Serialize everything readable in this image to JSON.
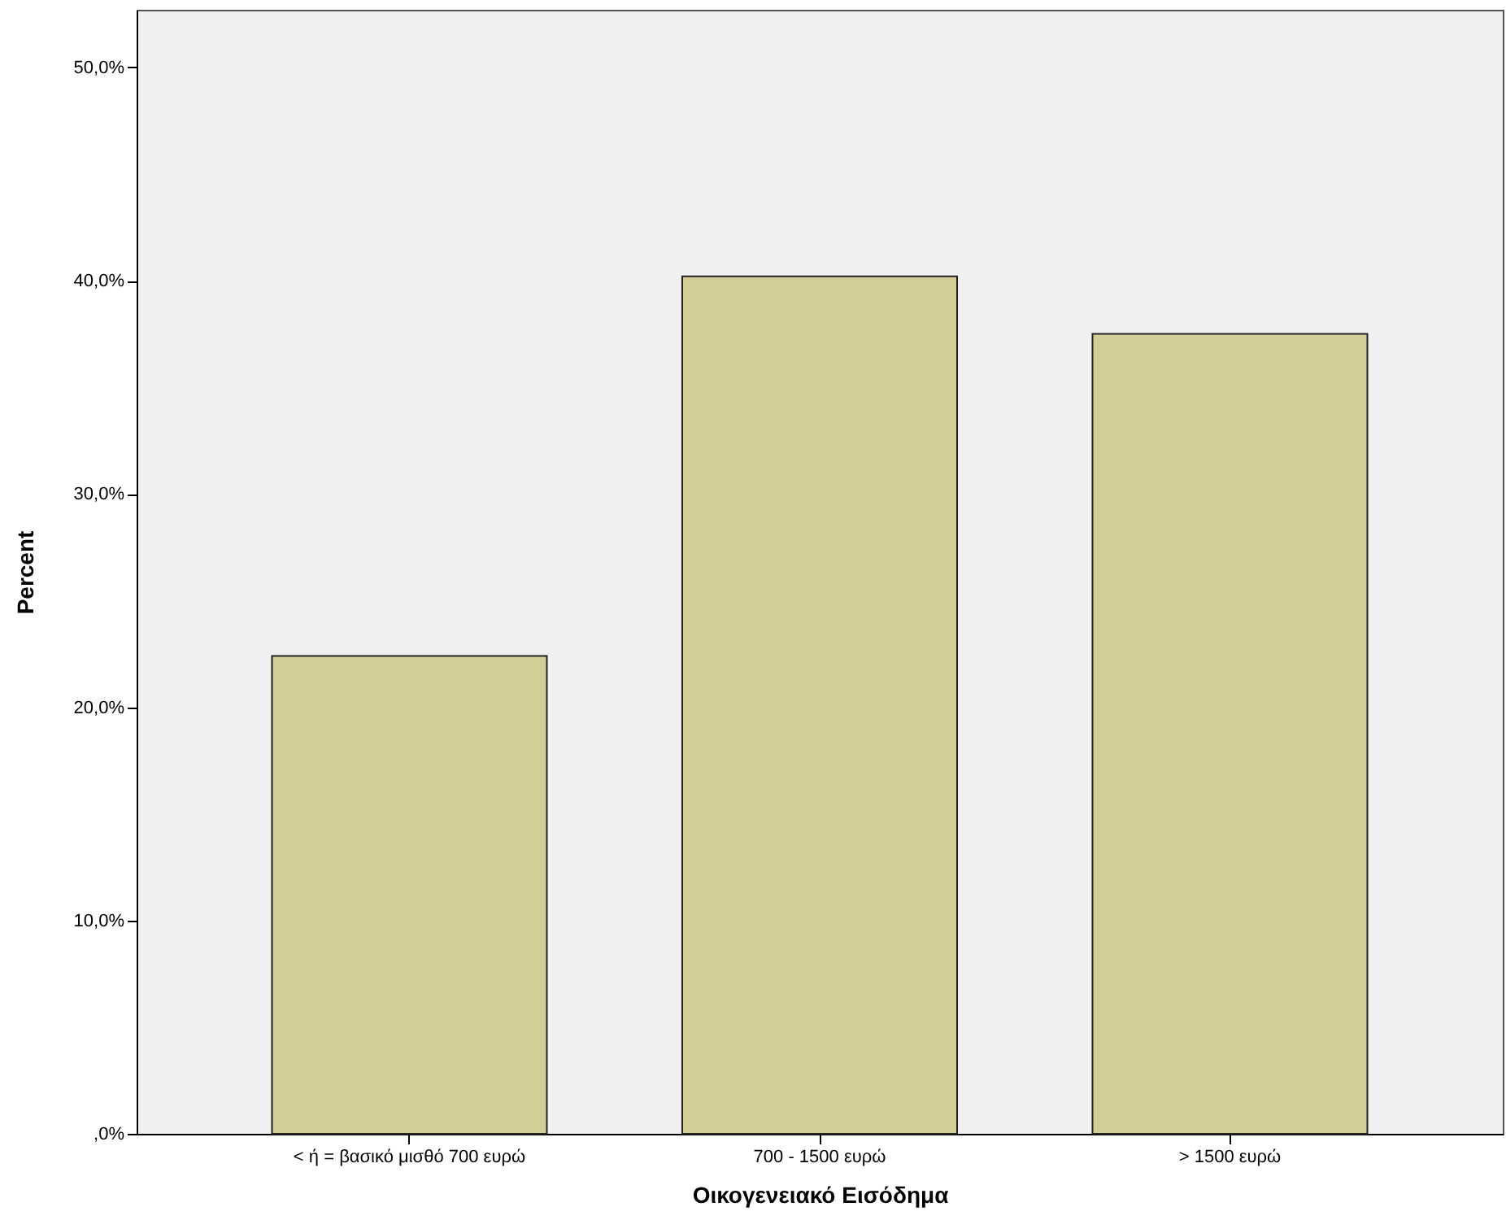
{
  "chart_data": {
    "type": "bar",
    "xlabel": "Οικογενειακό Εισόδημα",
    "ylabel": "Percent",
    "categories": [
      "< ή = βασικό μισθό 700 ευρώ",
      "700 - 1500 ευρώ",
      "> 1500 ευρώ"
    ],
    "values": [
      22.4,
      40.2,
      37.5
    ],
    "color": "#d3cd97",
    "ylim": [
      0,
      52.7
    ],
    "yticks": [
      {
        "value": 0,
        "label": ",0%"
      },
      {
        "value": 10,
        "label": "10,0%"
      },
      {
        "value": 20,
        "label": "20,0%"
      },
      {
        "value": 30,
        "label": "30,0%"
      },
      {
        "value": 40,
        "label": "40,0%"
      },
      {
        "value": 50,
        "label": "50,0%"
      }
    ],
    "grid": false
  }
}
